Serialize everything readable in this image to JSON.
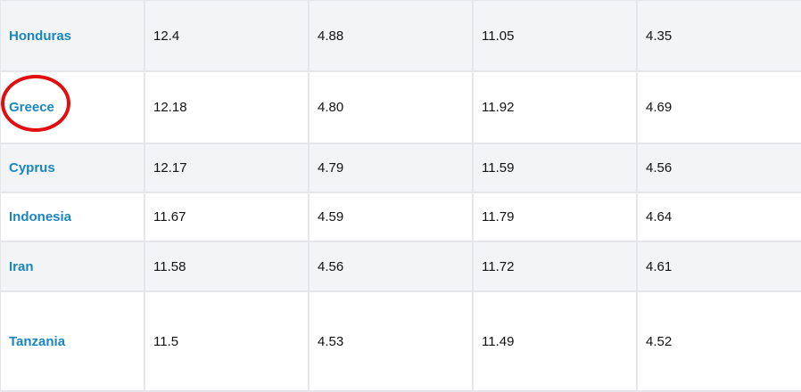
{
  "table": {
    "rows": [
      {
        "country": "Honduras",
        "values": [
          "12.4",
          "4.88",
          "11.05",
          "4.35"
        ],
        "highlighted": false
      },
      {
        "country": "Greece",
        "values": [
          "12.18",
          "4.80",
          "11.92",
          "4.69"
        ],
        "highlighted": true
      },
      {
        "country": "Cyprus",
        "values": [
          "12.17",
          "4.79",
          "11.59",
          "4.56"
        ],
        "highlighted": false
      },
      {
        "country": "Indonesia",
        "values": [
          "11.67",
          "4.59",
          "11.79",
          "4.64"
        ],
        "highlighted": false
      },
      {
        "country": "Iran",
        "values": [
          "11.58",
          "4.56",
          "11.72",
          "4.61"
        ],
        "highlighted": false
      },
      {
        "country": "Tanzania",
        "values": [
          "11.5",
          "4.53",
          "11.49",
          "4.52"
        ],
        "highlighted": false
      }
    ]
  },
  "colors": {
    "link": "#1a86c0",
    "highlight": "#e01010",
    "alt_row": "#f3f4f6",
    "border": "#e4e6e9"
  }
}
